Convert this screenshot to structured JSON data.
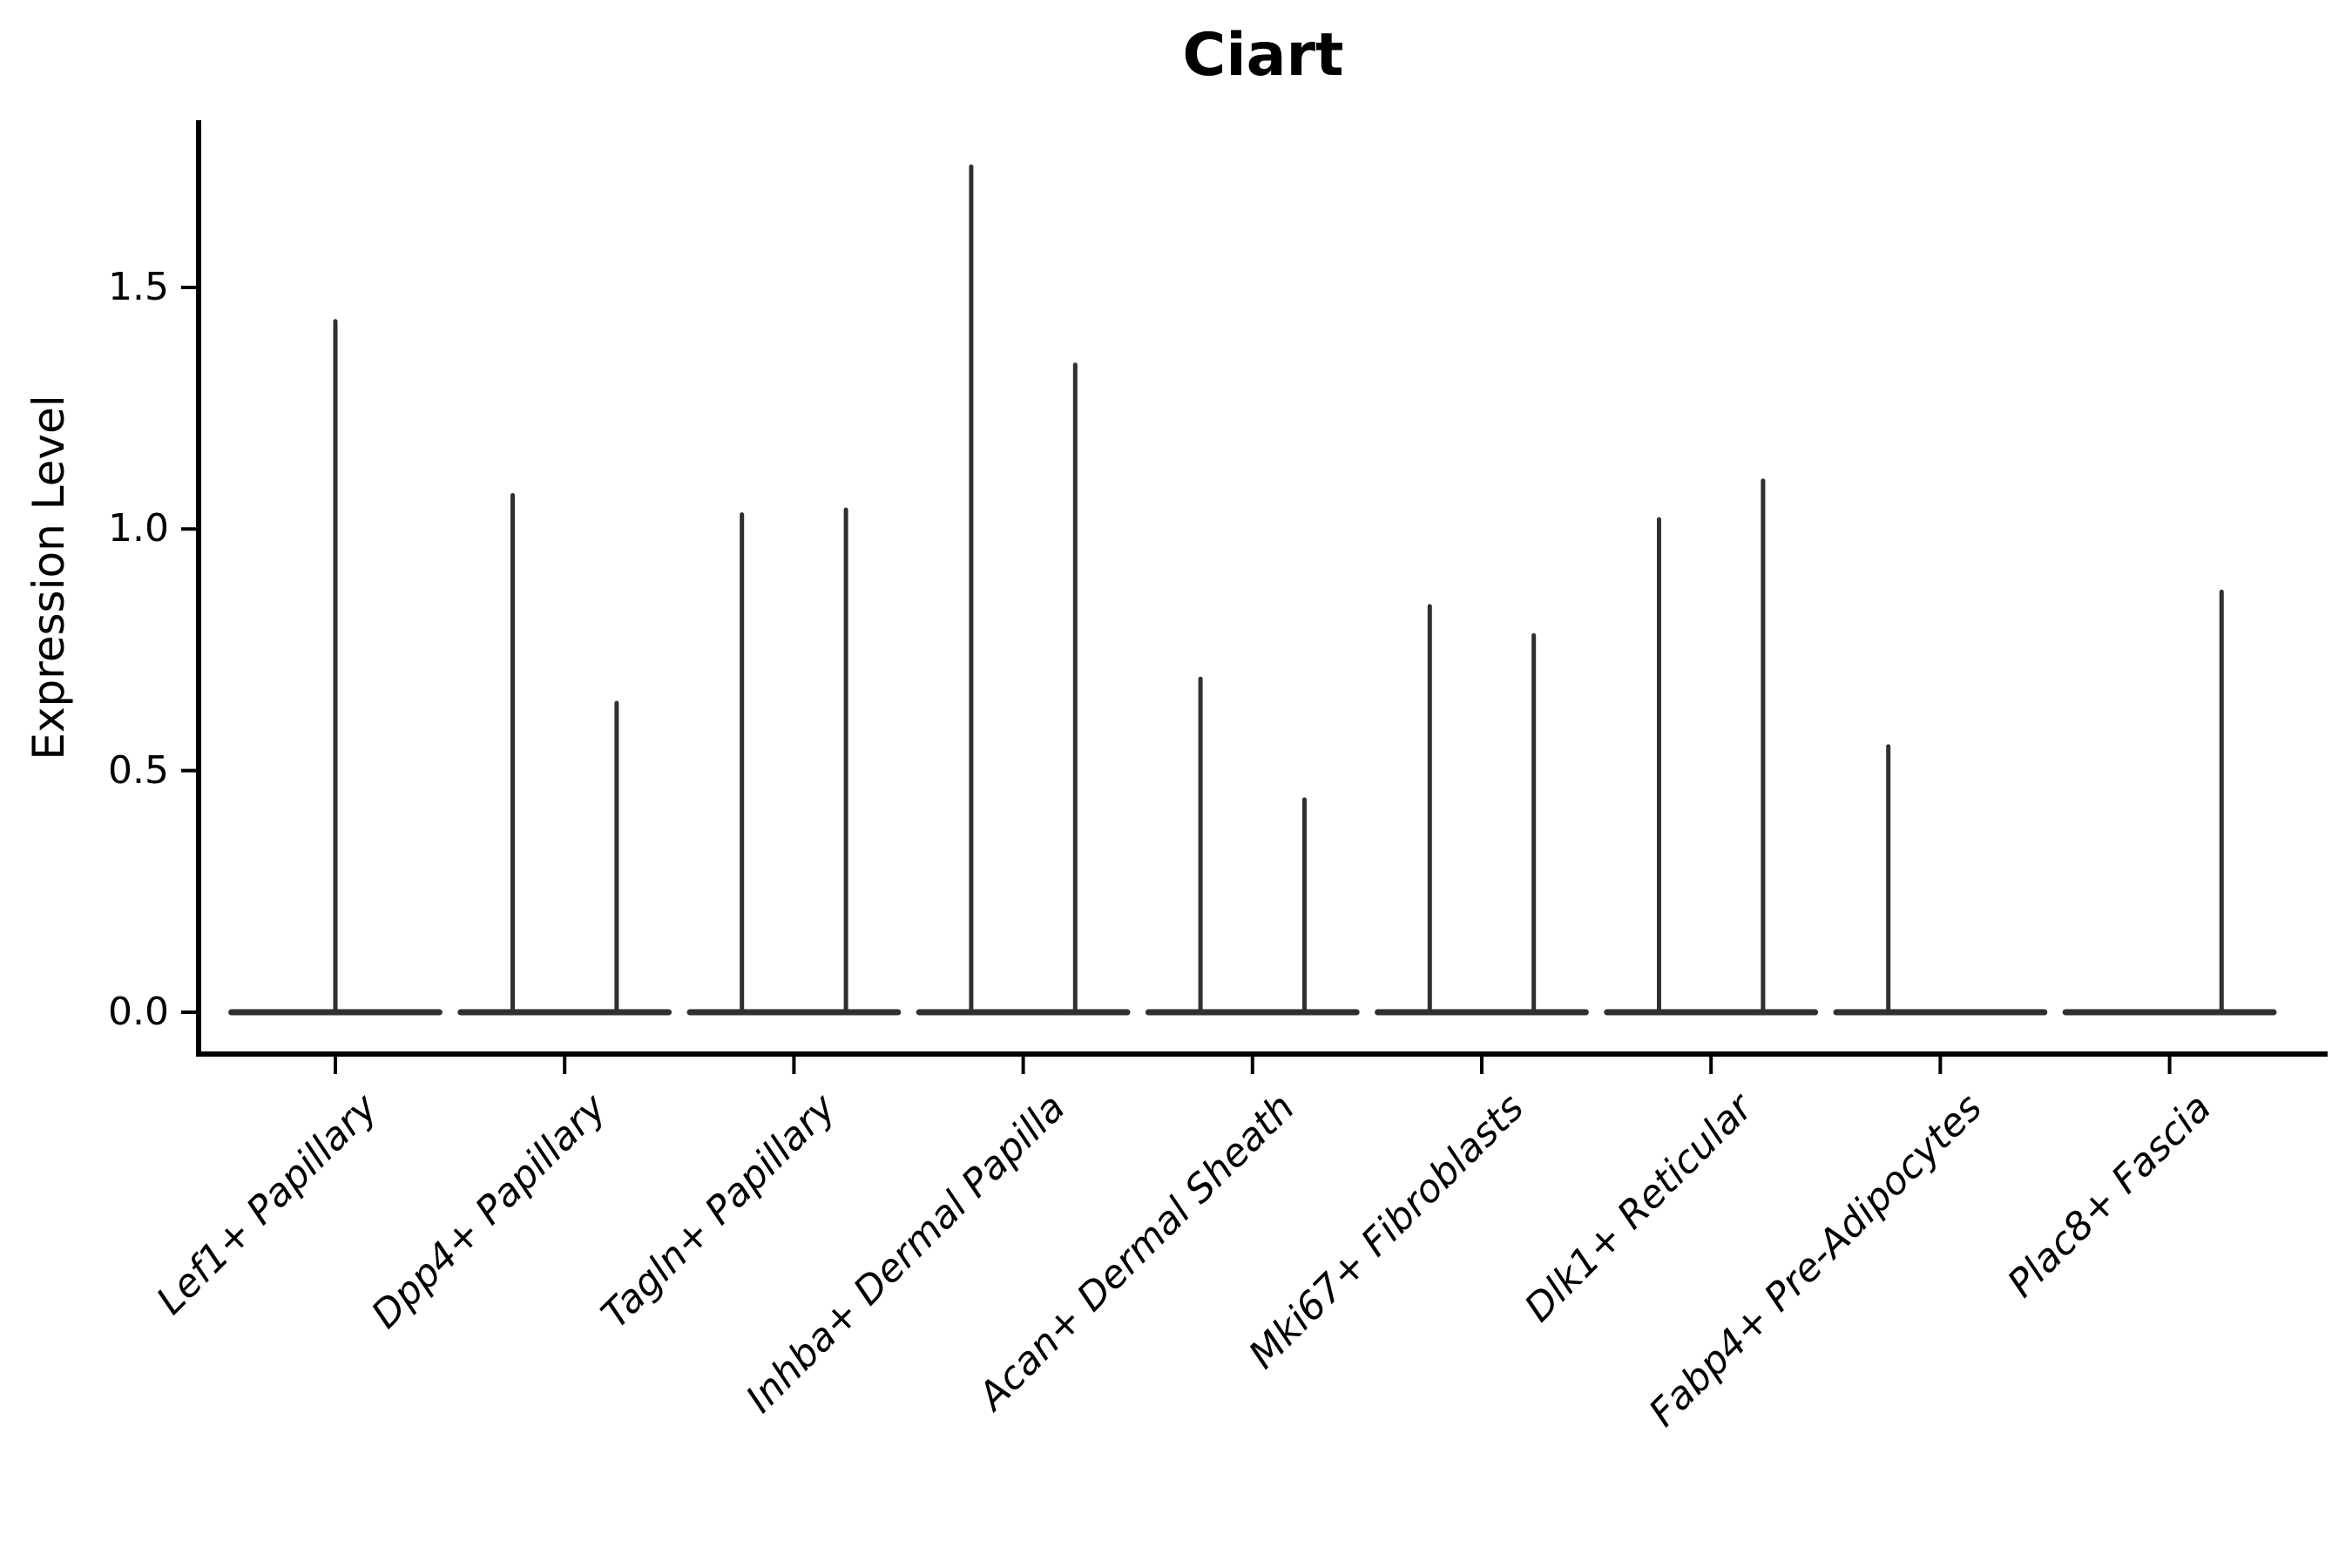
{
  "figure": {
    "title": "Ciart",
    "y_axis": {
      "label": "Expression Level",
      "tick_labels": [
        "0.0",
        "0.5",
        "1.0",
        "1.5"
      ],
      "tick_values": [
        0.0,
        0.5,
        1.0,
        1.5
      ]
    },
    "x_axis": {
      "tick_labels": [
        "Lef1+ Papillary",
        "Dpp4+ Papillary",
        "Tagln+ Papillary",
        "Inhba+ Dermal Papilla",
        "Acan+ Dermal Sheath",
        "Mki67+ Fibroblasts",
        "Dlk1+ Reticular",
        "Fabp4+ Pre-Adipocytes",
        "Plac8+ Fascia"
      ]
    }
  },
  "chart_data": {
    "type": "violin",
    "title": "Ciart",
    "xlabel": "",
    "ylabel": "Expression Level",
    "ylim": [
      0,
      1.85
    ],
    "yticks": [
      0.0,
      0.5,
      1.0,
      1.5
    ],
    "grid": false,
    "legend": "none",
    "violin_color": "#303030",
    "axis_color": "#000000",
    "note": "Sparse-expression violins: each violin collapses to a flat bar at 0 with a thin spike up to its maximum expression value. Categories with two sub-violins have left/right half-width violins; 'full' means a single full-width violin centered on the tick; max_expression 0 means a flat violin with no spike.",
    "categories": [
      "Lef1+ Papillary",
      "Dpp4+ Papillary",
      "Tagln+ Papillary",
      "Inhba+ Dermal Papilla",
      "Acan+ Dermal Sheath",
      "Mki67+ Fibroblasts",
      "Dlk1+ Reticular",
      "Fabp4+ Pre-Adipocytes",
      "Plac8+ Fascia"
    ],
    "categories_detail": [
      {
        "category": "Lef1+ Papillary",
        "violins": [
          {
            "position": "full",
            "max_expression": 1.43
          }
        ]
      },
      {
        "category": "Dpp4+ Papillary",
        "violins": [
          {
            "position": "left",
            "max_expression": 1.07
          },
          {
            "position": "right",
            "max_expression": 0.64
          }
        ]
      },
      {
        "category": "Tagln+ Papillary",
        "violins": [
          {
            "position": "left",
            "max_expression": 1.03
          },
          {
            "position": "right",
            "max_expression": 1.04
          }
        ]
      },
      {
        "category": "Inhba+ Dermal Papilla",
        "violins": [
          {
            "position": "left",
            "max_expression": 1.75
          },
          {
            "position": "right",
            "max_expression": 1.34
          }
        ]
      },
      {
        "category": "Acan+ Dermal Sheath",
        "violins": [
          {
            "position": "left",
            "max_expression": 0.69
          },
          {
            "position": "right",
            "max_expression": 0.44
          }
        ]
      },
      {
        "category": "Mki67+ Fibroblasts",
        "violins": [
          {
            "position": "left",
            "max_expression": 0.84
          },
          {
            "position": "right",
            "max_expression": 0.78
          }
        ]
      },
      {
        "category": "Dlk1+ Reticular",
        "violins": [
          {
            "position": "left",
            "max_expression": 1.02
          },
          {
            "position": "right",
            "max_expression": 1.1
          }
        ]
      },
      {
        "category": "Fabp4+ Pre-Adipocytes",
        "violins": [
          {
            "position": "left",
            "max_expression": 0.55
          },
          {
            "position": "right",
            "max_expression": 0.0
          }
        ]
      },
      {
        "category": "Plac8+ Fascia",
        "violins": [
          {
            "position": "left",
            "max_expression": 0.0
          },
          {
            "position": "right",
            "max_expression": 0.87
          }
        ]
      }
    ]
  }
}
